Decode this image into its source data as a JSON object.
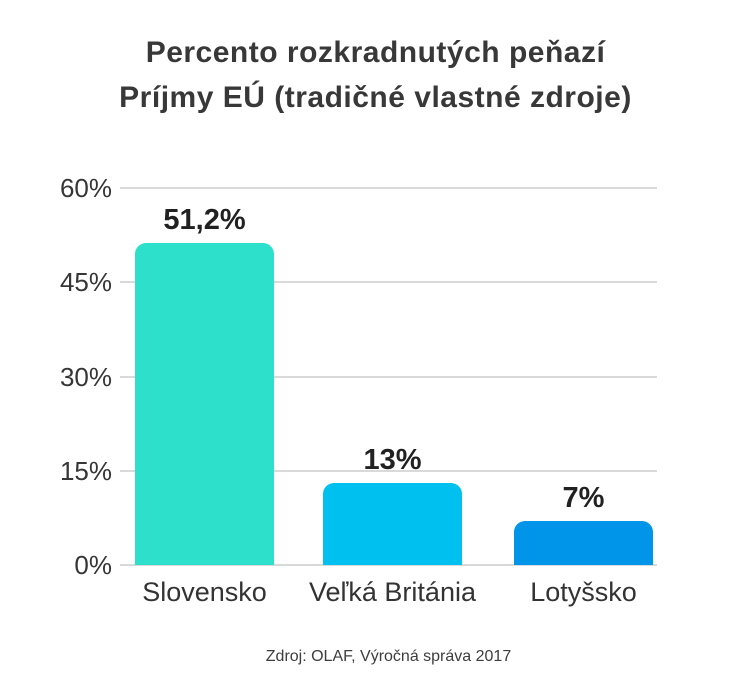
{
  "page": {
    "background_color": "#ffffff"
  },
  "title": {
    "line1": "Percento rozkradnutých peňazí",
    "line2": "Príjmy EÚ (tradičné vlastné zdroje)"
  },
  "footer": {
    "source": "Zdroj: OLAF, Výročná správa 2017"
  },
  "chart_data": {
    "type": "bar",
    "title": "Percento rozkradnutých peňazí — Príjmy EÚ (tradičné vlastné zdroje)",
    "categories": [
      "Slovensko",
      "Veľká Británia",
      "Lotyšsko"
    ],
    "values": [
      51.2,
      13,
      7
    ],
    "value_labels": [
      "51,2%",
      "13%",
      "7%"
    ],
    "bar_colors": [
      "#2de0cb",
      "#00c0ef",
      "#0095e8"
    ],
    "xlabel": "",
    "ylabel": "",
    "y_axis": {
      "min": 0,
      "max": 60,
      "ticks": [
        0,
        15,
        30,
        45,
        60
      ],
      "tick_labels": [
        "0%",
        "15%",
        "30%",
        "45%",
        "60%"
      ]
    },
    "grid": true,
    "gridline_color": "#d9d9d9",
    "legend": "none",
    "text_color": "#383838",
    "value_label_color": "#212121"
  }
}
